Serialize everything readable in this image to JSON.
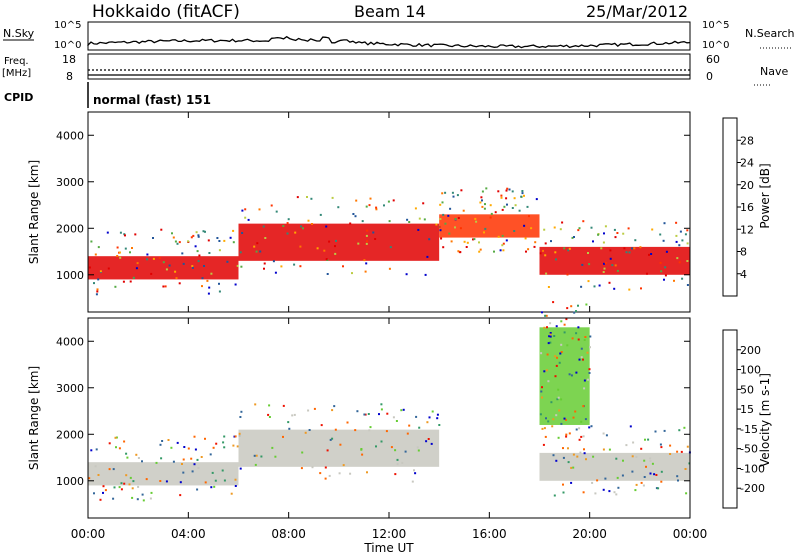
{
  "header": {
    "station": "Hokkaido (fitACF)",
    "beam": "Beam 14",
    "date": "25/Mar/2012"
  },
  "top_panels": {
    "nsky_label": "N.Sky",
    "nsky_ticks": [
      "10^5",
      "10^0"
    ],
    "nsearch_label": "N.Search",
    "freq_label_1": "Freq.",
    "freq_label_2": "[MHz]",
    "freq_ticks": [
      "18",
      "8"
    ],
    "nave_ticks": [
      "60",
      "0"
    ],
    "nave_label": "Nave",
    "cpid_label": "CPID",
    "cpid_value": "normal (fast) 151"
  },
  "x_axis": {
    "label": "Time UT",
    "ticks": [
      "00:00",
      "04:00",
      "08:00",
      "12:00",
      "16:00",
      "20:00",
      "00:00"
    ]
  },
  "chart_data": [
    {
      "type": "heatmap",
      "title": "Power",
      "ylabel": "Slant Range [km]",
      "xlabel": "Time UT",
      "yticks": [
        1000,
        2000,
        3000,
        4000
      ],
      "ylim": [
        200,
        4500
      ],
      "xlim_hours": [
        0,
        24
      ],
      "colorbar": {
        "label": "Power [dB]",
        "ticks": [
          "28",
          "24",
          "20",
          "16",
          "12",
          "8",
          "4"
        ],
        "colors": [
          "#e00000",
          "#ff3300",
          "#ff7700",
          "#ffaa00",
          "#bbcc44",
          "#55aa44",
          "#338877",
          "#225599",
          "#0000cc"
        ]
      },
      "bands": [
        {
          "hour_start": 0,
          "hour_end": 6,
          "range_low": 900,
          "range_high": 1400,
          "level": "28"
        },
        {
          "hour_start": 6,
          "hour_end": 14,
          "range_low": 1300,
          "range_high": 2100,
          "level": "28"
        },
        {
          "hour_start": 14,
          "hour_end": 18,
          "range_low": 1800,
          "range_high": 2300,
          "level": "24"
        },
        {
          "hour_start": 18,
          "hour_end": 24,
          "range_low": 1000,
          "range_high": 1600,
          "level": "28"
        }
      ]
    },
    {
      "type": "heatmap",
      "title": "Velocity",
      "ylabel": "Slant Range [km]",
      "xlabel": "Time UT",
      "yticks": [
        1000,
        2000,
        3000,
        4000
      ],
      "ylim": [
        200,
        4500
      ],
      "xlim_hours": [
        0,
        24
      ],
      "colorbar": {
        "label": "Velocity [m s-1]",
        "ticks": [
          "200",
          "100",
          "50",
          "15",
          "-15",
          "-50",
          "-100",
          "-200"
        ],
        "colors": [
          "#0000cc",
          "#336699",
          "#339966",
          "#66cc33",
          "#c8c8c0",
          "#ee9922",
          "#ff6600",
          "#ee1100"
        ]
      },
      "bands": [
        {
          "hour_start": 0,
          "hour_end": 6,
          "range_low": 900,
          "range_high": 1400,
          "level": "-15"
        },
        {
          "hour_start": 6,
          "hour_end": 14,
          "range_low": 1300,
          "range_high": 2100,
          "level": "-15"
        },
        {
          "hour_start": 18,
          "hour_end": 20,
          "range_low": 2200,
          "range_high": 4300,
          "level": "15"
        },
        {
          "hour_start": 18,
          "hour_end": 24,
          "range_low": 1000,
          "range_high": 1600,
          "level": "-15"
        }
      ]
    }
  ]
}
